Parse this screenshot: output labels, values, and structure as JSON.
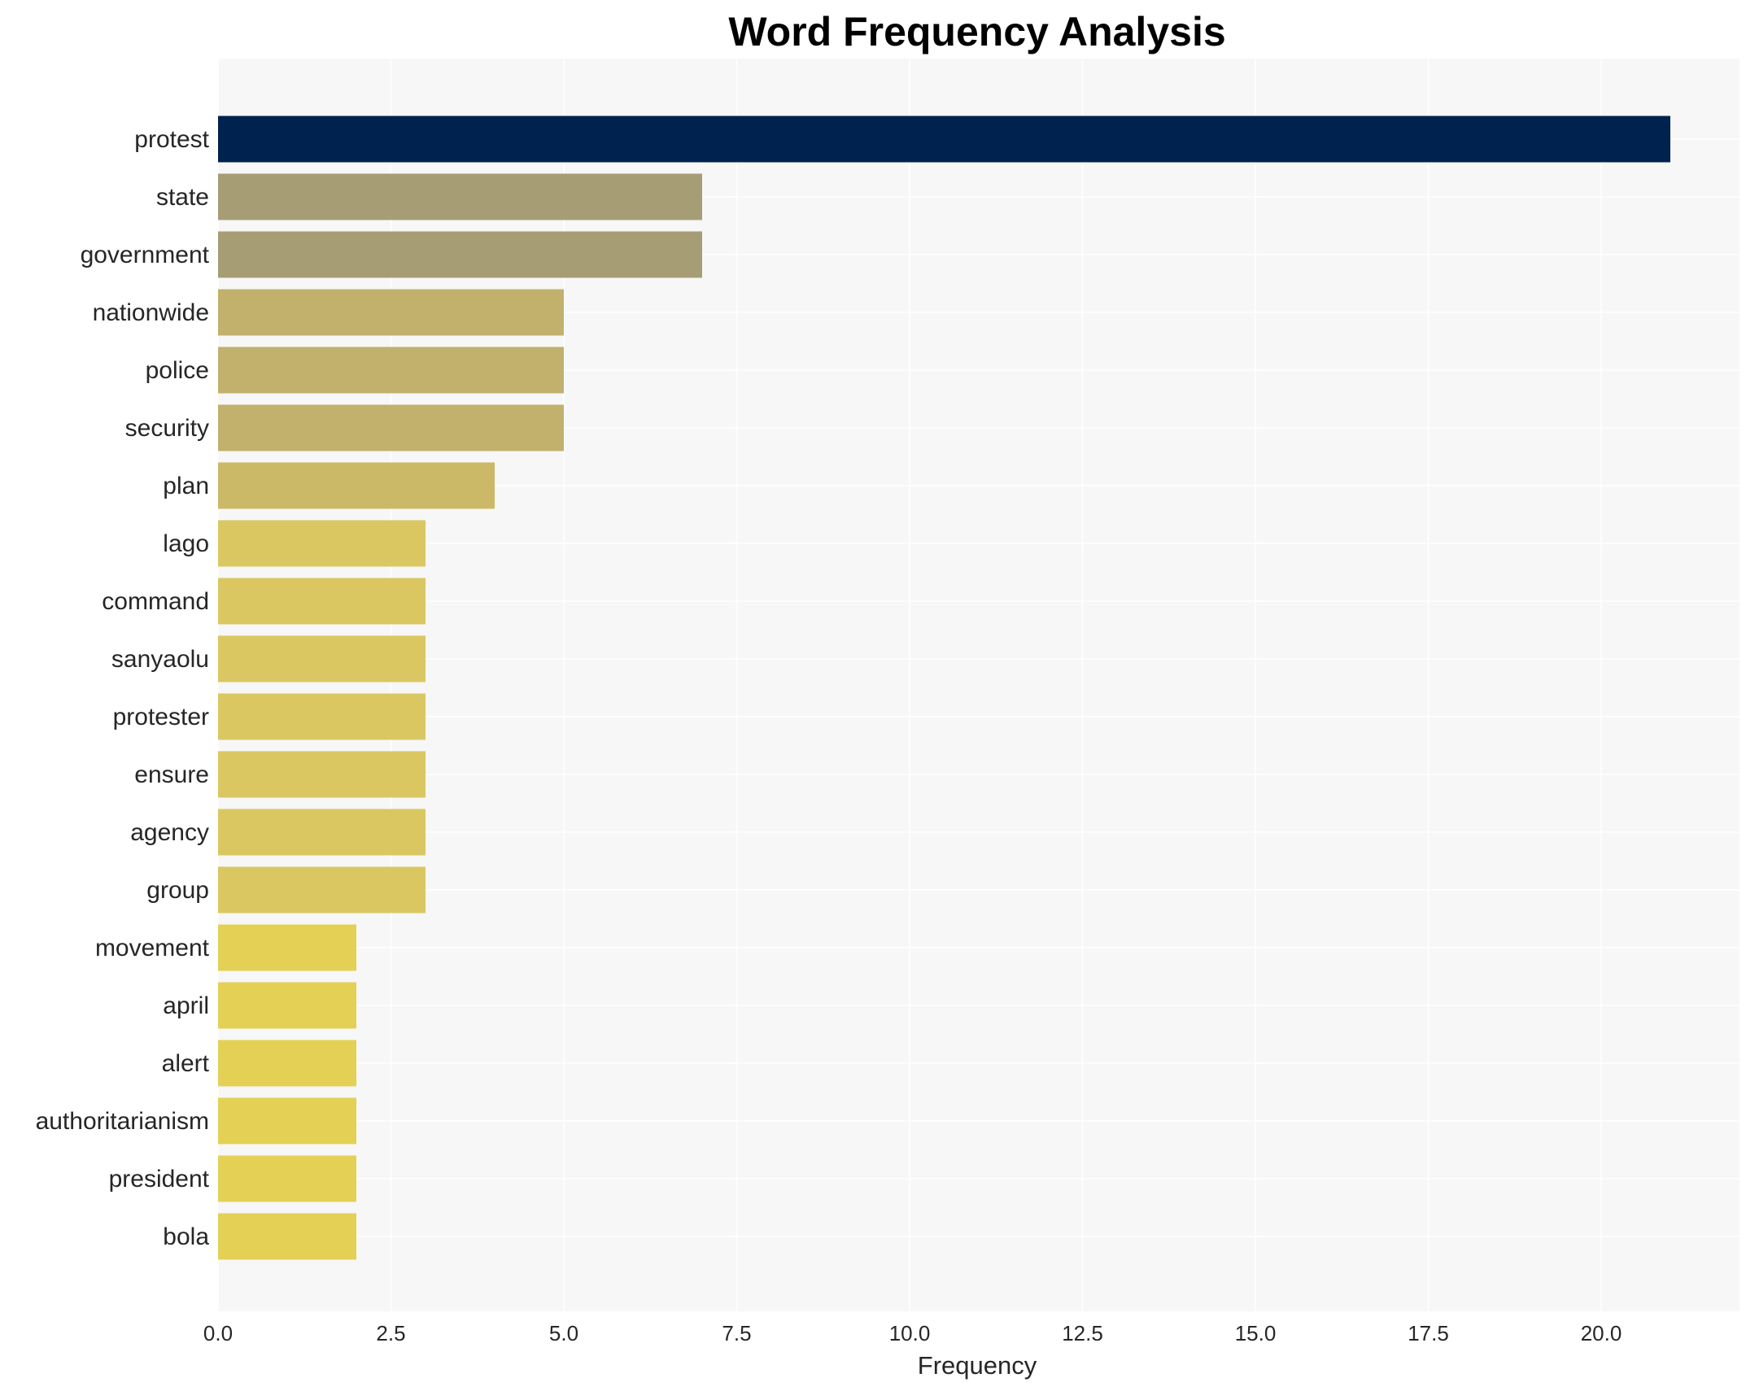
{
  "chart_data": {
    "type": "bar",
    "orientation": "horizontal",
    "title": "Word Frequency Analysis",
    "xlabel": "Frequency",
    "ylabel": "",
    "xlim": [
      0,
      22
    ],
    "x_ticks": [
      0,
      2.5,
      5,
      7.5,
      10,
      12.5,
      15,
      17.5,
      20
    ],
    "x_tick_labels": [
      "0.0",
      "2.5",
      "5.0",
      "7.5",
      "10.0",
      "12.5",
      "15.0",
      "17.5",
      "20.0"
    ],
    "grid": true,
    "categories": [
      "protest",
      "state",
      "government",
      "nationwide",
      "police",
      "security",
      "plan",
      "lago",
      "command",
      "sanyaolu",
      "protester",
      "ensure",
      "agency",
      "group",
      "movement",
      "april",
      "alert",
      "authoritarianism",
      "president",
      "bola"
    ],
    "values": [
      21,
      7,
      7,
      5,
      5,
      5,
      4,
      3,
      3,
      3,
      3,
      3,
      3,
      3,
      2,
      2,
      2,
      2,
      2,
      2
    ],
    "colors": [
      "#00224e",
      "#a69d75",
      "#a69d75",
      "#c1b16d",
      "#c1b16d",
      "#c1b16d",
      "#cbb967",
      "#dac761",
      "#dac761",
      "#dac761",
      "#dac761",
      "#dac761",
      "#dac761",
      "#dac761",
      "#e4d055",
      "#e4d055",
      "#e4d055",
      "#e4d055",
      "#e4d055",
      "#e4d055"
    ],
    "background_color": "#f7f7f7"
  }
}
